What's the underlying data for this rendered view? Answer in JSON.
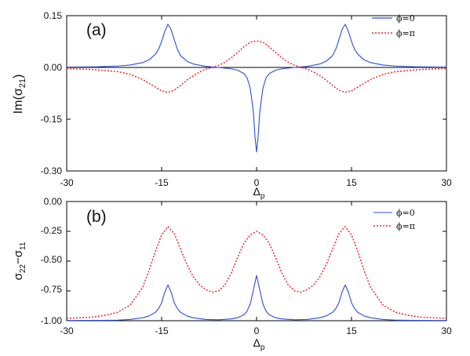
{
  "colors": {
    "series_solid": "#2a4fd6",
    "series_dotted": "#ee2a2a",
    "axis": "#000000",
    "zero_line": "#000000"
  },
  "chart_data": [
    {
      "type": "line",
      "panel_label": "(a)",
      "xlabel": {
        "main": "Δ",
        "sub": "p"
      },
      "ylabel": {
        "main": "Im(σ",
        "sub": "21",
        "end": ")"
      },
      "xlim": [
        -30,
        30
      ],
      "ylim": [
        -0.3,
        0.15
      ],
      "xticks": [
        -30,
        -15,
        0,
        15,
        30
      ],
      "xtick_labels": [
        "-30",
        "-15",
        "0",
        "15",
        "30"
      ],
      "yticks": [
        0.15,
        0.0,
        -0.15,
        -0.3
      ],
      "ytick_labels": [
        "0.15",
        "0.00",
        "-0.15",
        "-0.30"
      ],
      "zero_line": true,
      "legend_position": "top-right",
      "series": [
        {
          "name": "ϕ=0",
          "style": "solid",
          "x": [
            -30,
            -25,
            -22,
            -20,
            -18,
            -17,
            -16,
            -15.5,
            -15,
            -14.5,
            -14,
            -13.5,
            -13,
            -12.5,
            -12,
            -11,
            -10,
            -8,
            -6,
            -4,
            -3,
            -2,
            -1.5,
            -1,
            -0.5,
            -0.25,
            0,
            0.25,
            0.5,
            1,
            1.5,
            2,
            3,
            4,
            6,
            8,
            10,
            11,
            12,
            12.5,
            13,
            13.5,
            14,
            14.5,
            15,
            15.5,
            16,
            17,
            18,
            20,
            22,
            25,
            30
          ],
          "y": [
            0.001,
            0.002,
            0.004,
            0.007,
            0.014,
            0.022,
            0.038,
            0.052,
            0.075,
            0.105,
            0.125,
            0.11,
            0.08,
            0.052,
            0.034,
            0.018,
            0.01,
            0.003,
            0.0,
            -0.004,
            -0.008,
            -0.018,
            -0.03,
            -0.06,
            -0.13,
            -0.2,
            -0.245,
            -0.2,
            -0.13,
            -0.06,
            -0.03,
            -0.018,
            -0.008,
            -0.004,
            0.0,
            0.003,
            0.01,
            0.018,
            0.034,
            0.052,
            0.08,
            0.11,
            0.125,
            0.105,
            0.075,
            0.052,
            0.038,
            0.022,
            0.014,
            0.007,
            0.004,
            0.002,
            0.001
          ]
        },
        {
          "name": "ϕ=π",
          "style": "dotted",
          "x": [
            -30,
            -26,
            -22,
            -20,
            -18,
            -16,
            -15,
            -14,
            -13,
            -12,
            -11,
            -10,
            -9,
            -8,
            -7,
            -6,
            -5,
            -4,
            -3,
            -2,
            -1,
            0,
            1,
            2,
            3,
            4,
            5,
            6,
            7,
            8,
            9,
            10,
            11,
            12,
            13,
            14,
            15,
            16,
            18,
            20,
            22,
            26,
            30
          ],
          "y": [
            -0.003,
            -0.006,
            -0.012,
            -0.02,
            -0.035,
            -0.057,
            -0.068,
            -0.072,
            -0.066,
            -0.052,
            -0.037,
            -0.024,
            -0.013,
            -0.005,
            0.0,
            0.006,
            0.015,
            0.028,
            0.043,
            0.06,
            0.073,
            0.077,
            0.073,
            0.06,
            0.043,
            0.028,
            0.015,
            0.006,
            0.0,
            -0.005,
            -0.013,
            -0.024,
            -0.037,
            -0.052,
            -0.066,
            -0.072,
            -0.068,
            -0.057,
            -0.035,
            -0.02,
            -0.012,
            -0.006,
            -0.003
          ]
        }
      ]
    },
    {
      "type": "line",
      "panel_label": "(b)",
      "xlabel": {
        "main": "Δ",
        "sub": "p"
      },
      "ylabel": {
        "main": "σ",
        "sub": "22",
        "mid": "−σ",
        "sub2": "11"
      },
      "xlim": [
        -30,
        30
      ],
      "ylim": [
        -1.0,
        0.0
      ],
      "xticks": [
        -30,
        -15,
        0,
        15,
        30
      ],
      "xtick_labels": [
        "-30",
        "-15",
        "0",
        "15",
        "30"
      ],
      "yticks": [
        0.0,
        -0.25,
        -0.5,
        -0.75,
        -1.0
      ],
      "ytick_labels": [
        "0.00",
        "-0.25",
        "-0.50",
        "-0.75",
        "-1.00"
      ],
      "legend_position": "top-right",
      "series": [
        {
          "name": "ϕ=0",
          "style": "solid",
          "x": [
            -30,
            -25,
            -22,
            -20,
            -18,
            -17,
            -16,
            -15.5,
            -15,
            -14.5,
            -14,
            -13.5,
            -13,
            -12.5,
            -12,
            -11,
            -10,
            -8,
            -6,
            -4,
            -3,
            -2,
            -1.5,
            -1,
            -0.5,
            0,
            0.5,
            1,
            1.5,
            2,
            3,
            4,
            6,
            8,
            10,
            11,
            12,
            12.5,
            13,
            13.5,
            14,
            14.5,
            15,
            15.5,
            16,
            17,
            18,
            20,
            22,
            25,
            30
          ],
          "y": [
            -0.998,
            -0.997,
            -0.995,
            -0.99,
            -0.975,
            -0.96,
            -0.93,
            -0.9,
            -0.85,
            -0.76,
            -0.7,
            -0.76,
            -0.85,
            -0.9,
            -0.93,
            -0.96,
            -0.975,
            -0.99,
            -0.992,
            -0.985,
            -0.975,
            -0.95,
            -0.92,
            -0.86,
            -0.74,
            -0.62,
            -0.74,
            -0.86,
            -0.92,
            -0.95,
            -0.975,
            -0.985,
            -0.992,
            -0.99,
            -0.975,
            -0.96,
            -0.93,
            -0.9,
            -0.85,
            -0.76,
            -0.7,
            -0.76,
            -0.85,
            -0.9,
            -0.93,
            -0.96,
            -0.975,
            -0.99,
            -0.995,
            -0.997,
            -0.998
          ]
        },
        {
          "name": "ϕ=π",
          "style": "dotted",
          "x": [
            -30,
            -26,
            -24,
            -22,
            -20,
            -18,
            -17,
            -16,
            -15,
            -14,
            -13,
            -12,
            -11,
            -10,
            -9,
            -8,
            -7,
            -6,
            -5,
            -4,
            -3,
            -2,
            -1,
            0,
            1,
            2,
            3,
            4,
            5,
            6,
            7,
            8,
            9,
            10,
            11,
            12,
            13,
            14,
            15,
            16,
            17,
            18,
            20,
            22,
            24,
            26,
            30
          ],
          "y": [
            -0.98,
            -0.97,
            -0.955,
            -0.93,
            -0.87,
            -0.72,
            -0.58,
            -0.42,
            -0.28,
            -0.21,
            -0.27,
            -0.4,
            -0.53,
            -0.63,
            -0.7,
            -0.74,
            -0.76,
            -0.75,
            -0.7,
            -0.6,
            -0.47,
            -0.35,
            -0.28,
            -0.25,
            -0.28,
            -0.35,
            -0.47,
            -0.6,
            -0.7,
            -0.75,
            -0.76,
            -0.74,
            -0.7,
            -0.63,
            -0.53,
            -0.4,
            -0.27,
            -0.21,
            -0.28,
            -0.42,
            -0.58,
            -0.72,
            -0.87,
            -0.93,
            -0.955,
            -0.97,
            -0.98
          ]
        }
      ]
    }
  ]
}
